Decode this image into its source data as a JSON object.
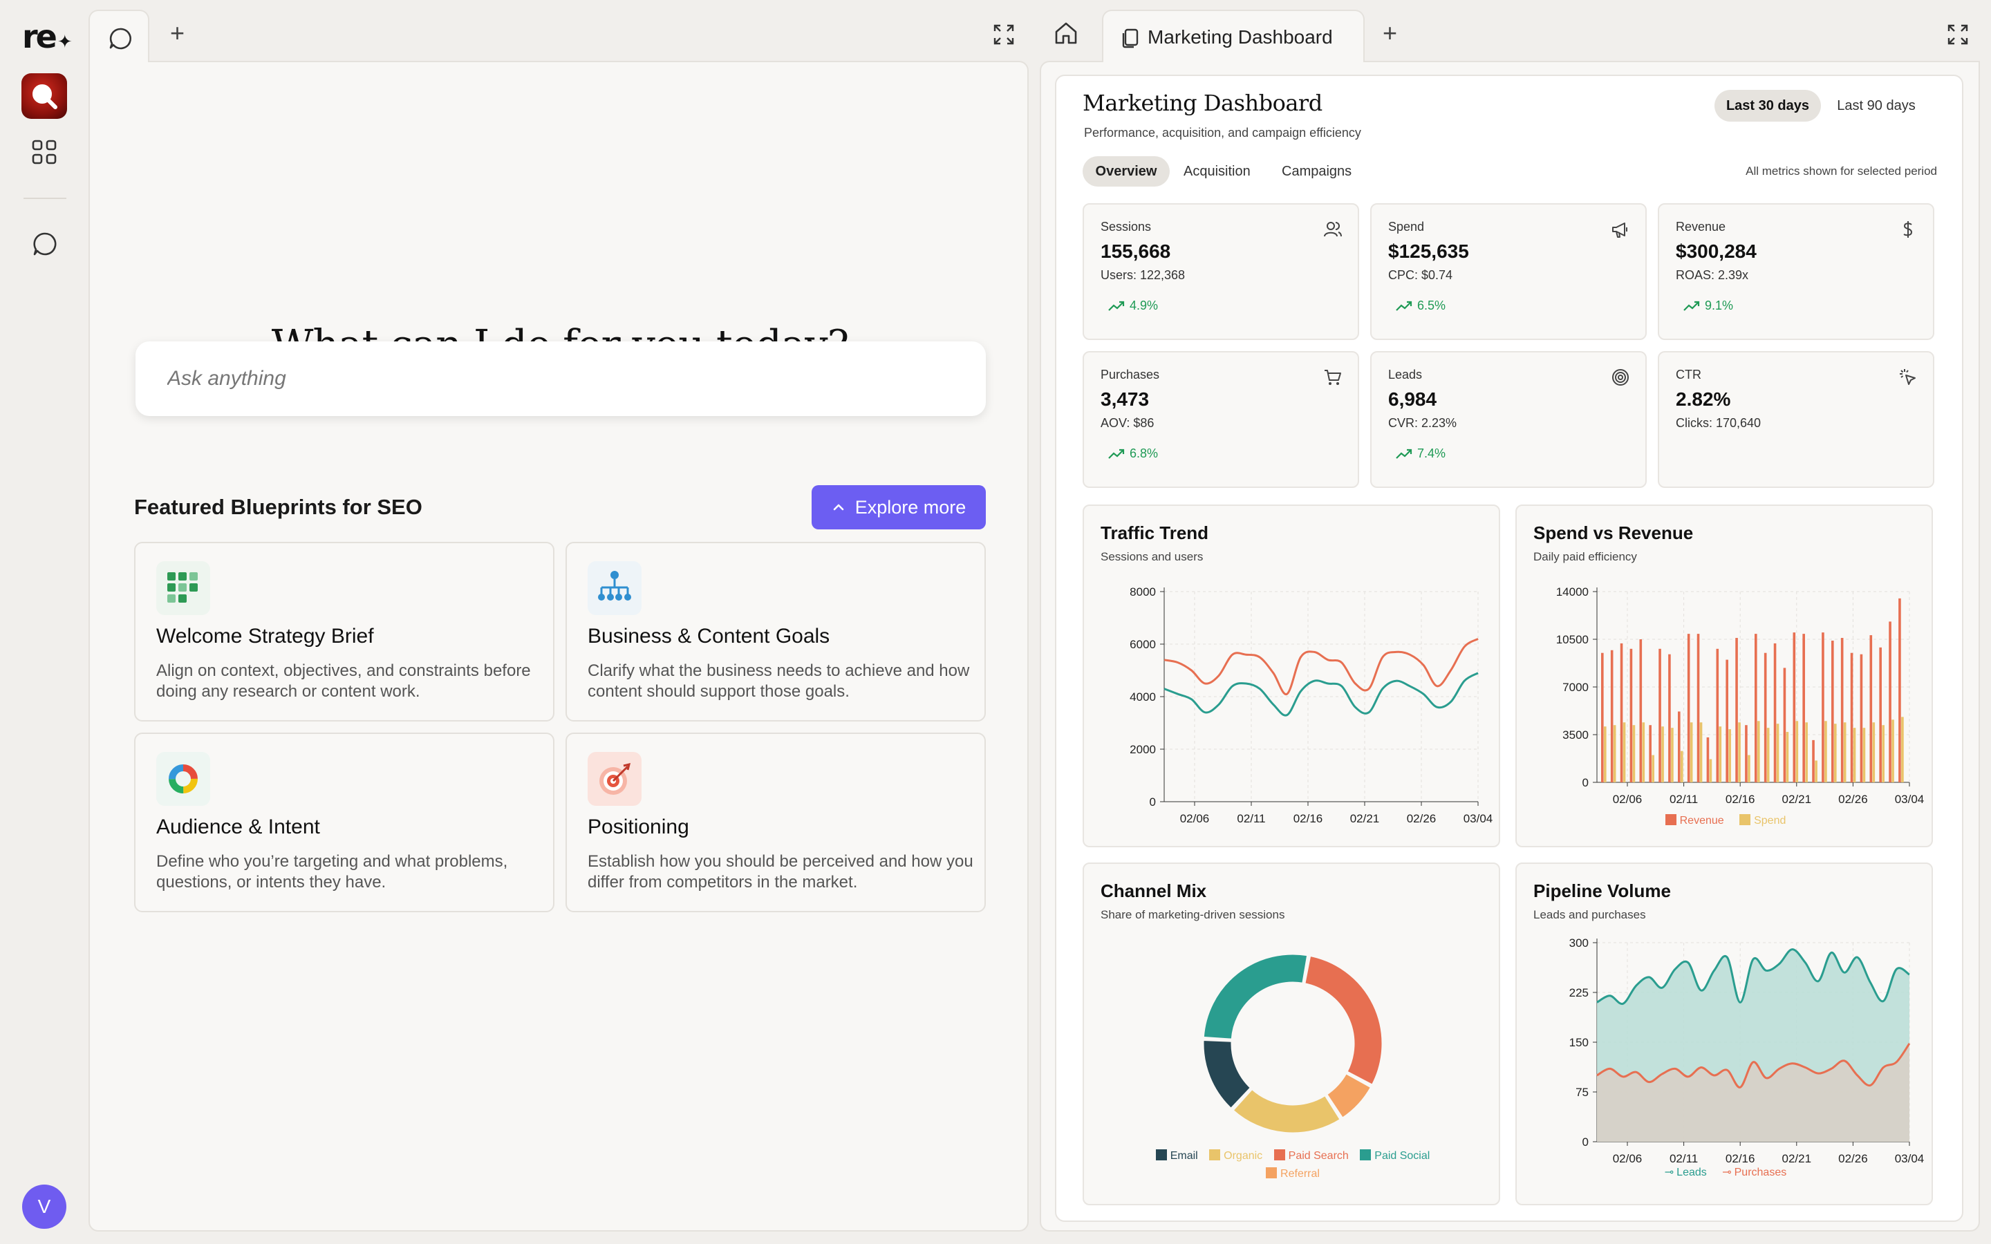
{
  "rail": {
    "logo": "re",
    "avatar_initial": "V"
  },
  "left": {
    "hero": "What can I do for you today?",
    "ask_placeholder": "Ask anything",
    "featured_title": "Featured Blueprints for SEO",
    "explore_label": "Explore more",
    "blueprints": [
      {
        "title": "Welcome Strategy Brief",
        "desc": "Align on context, objectives, and constraints before doing any research or content work.",
        "icon": "grid-dots-icon"
      },
      {
        "title": "Business & Content Goals",
        "desc": "Clarify what the business needs to achieve and how content should support those goals.",
        "icon": "org-chart-icon"
      },
      {
        "title": "Audience & Intent",
        "desc": "Define who you’re targeting and what problems, questions, or intents they have.",
        "icon": "color-ring-icon"
      },
      {
        "title": "Positioning",
        "desc": "Establish how you should be perceived and how you differ from competitors in the market.",
        "icon": "target-icon"
      }
    ]
  },
  "right": {
    "tab_label": "Marketing Dashboard",
    "dashboard": {
      "title": "Marketing Dashboard",
      "subtitle": "Performance, acquisition, and campaign efficiency",
      "ranges": [
        "Last 30 days",
        "Last 90 days"
      ],
      "selected_range": "Last 30 days",
      "tabs": [
        "Overview",
        "Acquisition",
        "Campaigns"
      ],
      "selected_tab": "Overview",
      "period_note": "All metrics shown for selected period",
      "kpis": [
        {
          "label": "Sessions",
          "value": "155,668",
          "sub": "Users: 122,368",
          "trend": "4.9%",
          "icon": "users-icon"
        },
        {
          "label": "Spend",
          "value": "$125,635",
          "sub": "CPC: $0.74",
          "trend": "6.5%",
          "icon": "megaphone-icon"
        },
        {
          "label": "Revenue",
          "value": "$300,284",
          "sub": "ROAS: 2.39x",
          "trend": "9.1%",
          "icon": "dollar-icon"
        },
        {
          "label": "Purchases",
          "value": "3,473",
          "sub": "AOV: $86",
          "trend": "6.8%",
          "icon": "cart-icon"
        },
        {
          "label": "Leads",
          "value": "6,984",
          "sub": "CVR: 2.23%",
          "trend": "7.4%",
          "icon": "target-icon"
        },
        {
          "label": "CTR",
          "value": "2.82%",
          "sub": "Clicks: 170,640",
          "trend": "",
          "icon": "click-icon"
        }
      ],
      "colors": {
        "teal": "#2a9d8f",
        "orange": "#e76f51",
        "yellow": "#e9c46a",
        "lightorange": "#f4a261",
        "dark": "#264653"
      }
    }
  },
  "chart_data": [
    {
      "type": "line",
      "title": "Traffic Trend",
      "subtitle": "Sessions and users",
      "ylim": [
        0,
        8000
      ],
      "yticks": [
        "0",
        "2000",
        "4000",
        "6000",
        "8000"
      ],
      "xticks": [
        "02/06",
        "02/11",
        "02/16",
        "02/21",
        "02/26",
        "03/04"
      ],
      "series": [
        {
          "color": "#e76f51",
          "values": [
            5400,
            5300,
            5000,
            4500,
            4800,
            5600,
            5600,
            5500,
            4900,
            4100,
            5500,
            5700,
            5400,
            5300,
            4500,
            4300,
            5500,
            5700,
            5600,
            5200,
            4400,
            5000,
            5900,
            6200
          ]
        },
        {
          "color": "#2a9d8f",
          "values": [
            4300,
            4100,
            3900,
            3400,
            3700,
            4400,
            4500,
            4300,
            3700,
            3300,
            4200,
            4600,
            4500,
            4400,
            3600,
            3400,
            4300,
            4600,
            4400,
            4100,
            3600,
            3800,
            4600,
            4900
          ]
        }
      ]
    },
    {
      "type": "bar",
      "title": "Spend vs Revenue",
      "subtitle": "Daily paid efficiency",
      "ylim": [
        0,
        14000
      ],
      "yticks": [
        "0",
        "3500",
        "7000",
        "10500",
        "14000"
      ],
      "xticks": [
        "02/06",
        "02/11",
        "02/16",
        "02/21",
        "02/26",
        "03/04"
      ],
      "series": [
        {
          "name": "Revenue",
          "color": "#e76f51",
          "values": [
            9500,
            9700,
            10200,
            9800,
            10500,
            4200,
            9800,
            9400,
            5200,
            10900,
            10900,
            3300,
            9800,
            9000,
            10600,
            4200,
            10900,
            9500,
            10200,
            8400,
            11000,
            10900,
            3100,
            11000,
            10400,
            10600,
            9500,
            9400,
            10800,
            9900,
            11800,
            13500
          ]
        },
        {
          "name": "Spend",
          "color": "#e9c46a",
          "values": [
            4100,
            4200,
            4400,
            4200,
            4400,
            2000,
            4100,
            4000,
            2300,
            4400,
            4400,
            1700,
            4100,
            3900,
            4400,
            2000,
            4500,
            4000,
            4300,
            3700,
            4500,
            4400,
            1600,
            4500,
            4300,
            4400,
            4000,
            4000,
            4400,
            4200,
            4600,
            4800
          ]
        }
      ]
    },
    {
      "type": "pie",
      "title": "Channel Mix",
      "subtitle": "Share of marketing-driven sessions",
      "labels": [
        "Paid Search",
        "Referral",
        "Organic",
        "Email",
        "Paid Social"
      ],
      "values": [
        30,
        8,
        21,
        14,
        27
      ]
    },
    {
      "type": "area",
      "title": "Pipeline Volume",
      "subtitle": "Leads and purchases",
      "ylim": [
        0,
        300
      ],
      "yticks": [
        "0",
        "75",
        "150",
        "225",
        "300"
      ],
      "xticks": [
        "02/06",
        "02/11",
        "02/16",
        "02/21",
        "02/26",
        "03/04"
      ],
      "series": [
        {
          "name": "Leads",
          "color": "#2a9d8f",
          "values": [
            210,
            220,
            208,
            235,
            248,
            232,
            260,
            270,
            228,
            258,
            278,
            210,
            275,
            258,
            268,
            290,
            270,
            242,
            285,
            255,
            278,
            240,
            212,
            260,
            252
          ]
        },
        {
          "name": "Purchases",
          "color": "#e76f51",
          "values": [
            100,
            110,
            98,
            105,
            90,
            102,
            110,
            98,
            112,
            100,
            108,
            82,
            120,
            96,
            110,
            118,
            112,
            103,
            110,
            122,
            100,
            85,
            112,
            120,
            148
          ]
        }
      ]
    }
  ]
}
